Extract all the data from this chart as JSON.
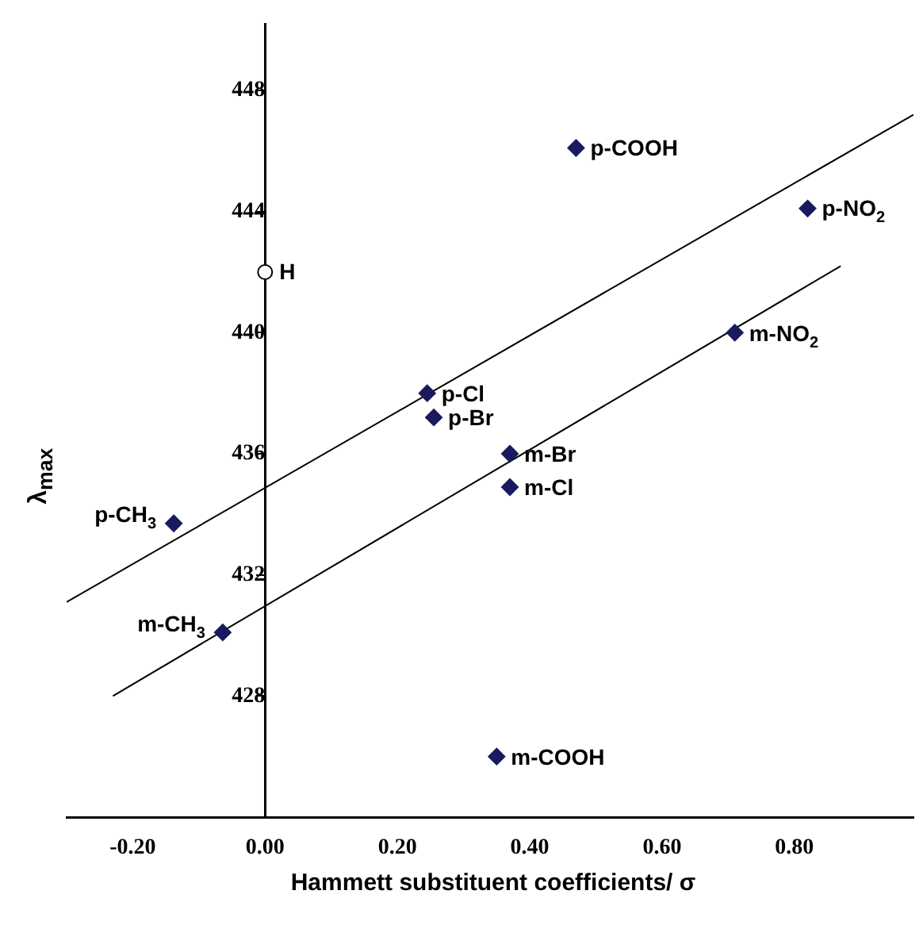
{
  "chart_data": {
    "type": "scatter",
    "xlabel": "Hammett substituent coefficients/ σ",
    "ylabel": "λ$_{max}$",
    "xlim": [
      -0.3,
      0.98
    ],
    "ylim": [
      424,
      450.2
    ],
    "xticks": [
      {
        "value": -0.2,
        "label": "-0.20"
      },
      {
        "value": 0,
        "label": "0.00"
      },
      {
        "value": 0.2,
        "label": "0.20"
      },
      {
        "value": 0.4,
        "label": "0.40"
      },
      {
        "value": 0.6,
        "label": "0.60"
      },
      {
        "value": 0.8,
        "label": "0.80"
      }
    ],
    "yticks": [
      428,
      432,
      436,
      440,
      444,
      448
    ],
    "grid": false,
    "legend": false,
    "series": [
      {
        "type": "scatter",
        "marker": "circle",
        "color": "#ffffff",
        "x": [
          0
        ],
        "values": [
          442
        ]
      },
      {
        "type": "scatter",
        "marker": "diamond",
        "color": "#1a1a5e",
        "x": [
          0.47,
          0.82,
          0.71,
          0.245,
          0.255,
          0.37,
          0.37,
          -0.138,
          -0.064,
          0.35
        ],
        "values": [
          446.1,
          444.1,
          440,
          438,
          437.2,
          436,
          434.9,
          433.7,
          430.1,
          426
        ]
      },
      {
        "type": "line",
        "marker": "none",
        "color": "#000000",
        "x": [
          -0.3,
          0.98
        ],
        "values": [
          431.1,
          447.2
        ]
      },
      {
        "type": "line",
        "marker": "none",
        "color": "#000000",
        "x": [
          -0.23,
          0.87
        ],
        "values": [
          428,
          442.2
        ]
      }
    ],
    "annotations": [
      {
        "text": "H",
        "x": 0,
        "y": 442
      },
      {
        "text": "p-COOH",
        "x": 0.47,
        "y": 446.1
      },
      {
        "text": "p-NO$_{2}$",
        "x": 0.82,
        "y": 444.1
      },
      {
        "text": "m-NO$_{2}$",
        "x": 0.71,
        "y": 440
      },
      {
        "text": "p-Cl",
        "x": 0.245,
        "y": 438
      },
      {
        "text": "p-Br",
        "x": 0.255,
        "y": 437.2
      },
      {
        "text": "m-Br",
        "x": 0.37,
        "y": 436
      },
      {
        "text": "m-Cl",
        "x": 0.37,
        "y": 434.9
      },
      {
        "text": "p-CH$_{3}$",
        "x": -0.138,
        "y": 433.7
      },
      {
        "text": "m-CH$_{3}$",
        "x": -0.064,
        "y": 430.1
      },
      {
        "text": "m-COOH",
        "x": 0.35,
        "y": 426
      }
    ]
  }
}
